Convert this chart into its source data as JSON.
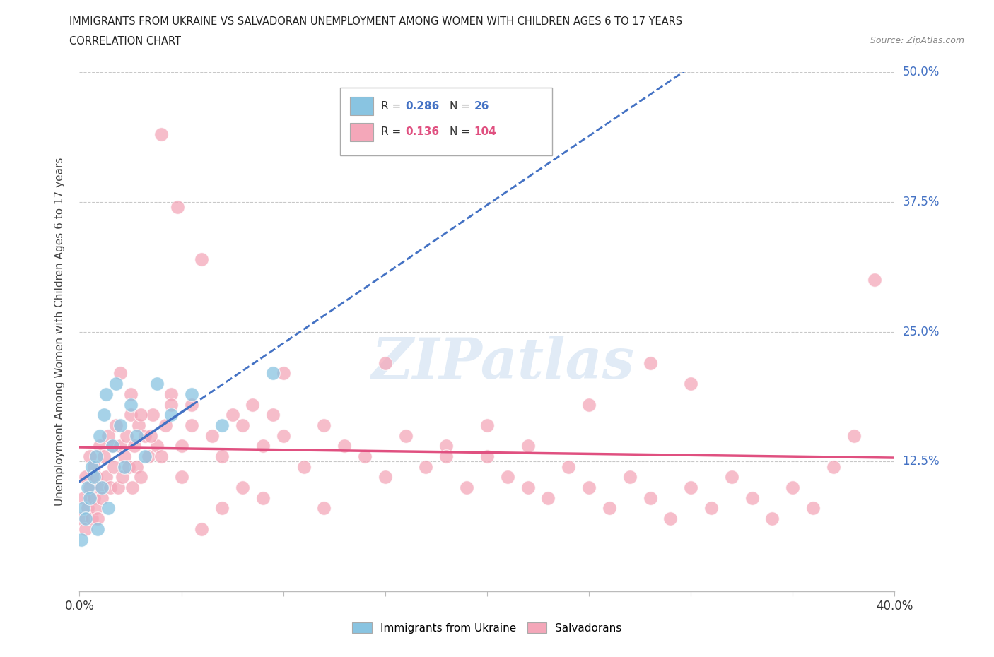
{
  "title_line1": "IMMIGRANTS FROM UKRAINE VS SALVADORAN UNEMPLOYMENT AMONG WOMEN WITH CHILDREN AGES 6 TO 17 YEARS",
  "title_line2": "CORRELATION CHART",
  "source_text": "Source: ZipAtlas.com",
  "ylabel": "Unemployment Among Women with Children Ages 6 to 17 years",
  "xlim": [
    0.0,
    0.4
  ],
  "ylim": [
    0.0,
    0.5
  ],
  "xticks": [
    0.0,
    0.05,
    0.1,
    0.15,
    0.2,
    0.25,
    0.3,
    0.35,
    0.4
  ],
  "xticklabels": [
    "0.0%",
    "",
    "",
    "",
    "",
    "",
    "",
    "",
    "40.0%"
  ],
  "yticks": [
    0.0,
    0.125,
    0.25,
    0.375,
    0.5
  ],
  "yticklabels": [
    "",
    "12.5%",
    "25.0%",
    "37.5%",
    "50.0%"
  ],
  "ukraine_color": "#89c4e1",
  "salvador_color": "#f4a7b9",
  "ukraine_line_color": "#4472c4",
  "salvador_line_color": "#e05080",
  "ukraine_R": 0.286,
  "ukraine_N": 26,
  "salvador_R": 0.136,
  "salvador_N": 104,
  "watermark": "ZIPatlas",
  "background_color": "#ffffff",
  "grid_color": "#c8c8c8",
  "ukraine_scatter_x": [
    0.001,
    0.002,
    0.003,
    0.004,
    0.005,
    0.006,
    0.007,
    0.008,
    0.009,
    0.01,
    0.011,
    0.012,
    0.013,
    0.014,
    0.016,
    0.018,
    0.02,
    0.022,
    0.025,
    0.028,
    0.032,
    0.038,
    0.045,
    0.055,
    0.07,
    0.095
  ],
  "ukraine_scatter_y": [
    0.05,
    0.08,
    0.07,
    0.1,
    0.09,
    0.12,
    0.11,
    0.13,
    0.06,
    0.15,
    0.1,
    0.17,
    0.19,
    0.08,
    0.14,
    0.2,
    0.16,
    0.12,
    0.18,
    0.15,
    0.13,
    0.2,
    0.17,
    0.19,
    0.16,
    0.21
  ],
  "salvador_scatter_x": [
    0.001,
    0.002,
    0.003,
    0.003,
    0.004,
    0.005,
    0.005,
    0.006,
    0.007,
    0.007,
    0.008,
    0.008,
    0.009,
    0.01,
    0.01,
    0.011,
    0.012,
    0.013,
    0.014,
    0.015,
    0.016,
    0.017,
    0.018,
    0.019,
    0.02,
    0.021,
    0.022,
    0.023,
    0.024,
    0.025,
    0.026,
    0.027,
    0.028,
    0.029,
    0.03,
    0.032,
    0.034,
    0.036,
    0.038,
    0.04,
    0.042,
    0.045,
    0.048,
    0.05,
    0.055,
    0.06,
    0.065,
    0.07,
    0.075,
    0.08,
    0.085,
    0.09,
    0.095,
    0.1,
    0.11,
    0.12,
    0.13,
    0.14,
    0.15,
    0.16,
    0.17,
    0.18,
    0.19,
    0.2,
    0.21,
    0.22,
    0.23,
    0.24,
    0.25,
    0.26,
    0.27,
    0.28,
    0.29,
    0.3,
    0.31,
    0.32,
    0.33,
    0.34,
    0.35,
    0.36,
    0.37,
    0.38,
    0.39,
    0.1,
    0.12,
    0.15,
    0.18,
    0.2,
    0.22,
    0.25,
    0.28,
    0.3,
    0.02,
    0.025,
    0.03,
    0.035,
    0.04,
    0.045,
    0.05,
    0.055,
    0.06,
    0.07,
    0.08,
    0.09
  ],
  "salvador_scatter_y": [
    0.07,
    0.09,
    0.06,
    0.11,
    0.08,
    0.1,
    0.13,
    0.07,
    0.09,
    0.12,
    0.08,
    0.11,
    0.07,
    0.1,
    0.14,
    0.09,
    0.13,
    0.11,
    0.15,
    0.1,
    0.14,
    0.12,
    0.16,
    0.1,
    0.14,
    0.11,
    0.13,
    0.15,
    0.12,
    0.17,
    0.1,
    0.14,
    0.12,
    0.16,
    0.11,
    0.15,
    0.13,
    0.17,
    0.14,
    0.44,
    0.16,
    0.19,
    0.37,
    0.14,
    0.18,
    0.32,
    0.15,
    0.13,
    0.17,
    0.16,
    0.18,
    0.14,
    0.17,
    0.15,
    0.12,
    0.16,
    0.14,
    0.13,
    0.11,
    0.15,
    0.12,
    0.14,
    0.1,
    0.13,
    0.11,
    0.14,
    0.09,
    0.12,
    0.1,
    0.08,
    0.11,
    0.09,
    0.07,
    0.1,
    0.08,
    0.11,
    0.09,
    0.07,
    0.1,
    0.08,
    0.12,
    0.15,
    0.3,
    0.21,
    0.08,
    0.22,
    0.13,
    0.16,
    0.1,
    0.18,
    0.22,
    0.2,
    0.21,
    0.19,
    0.17,
    0.15,
    0.13,
    0.18,
    0.11,
    0.16,
    0.06,
    0.08,
    0.1,
    0.09
  ]
}
